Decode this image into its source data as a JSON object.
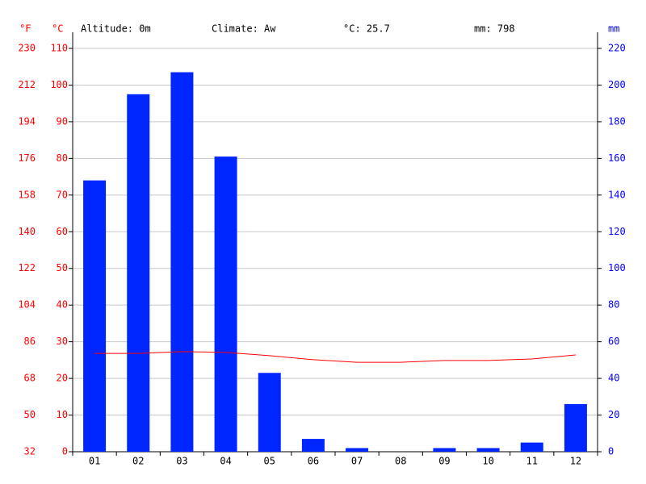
{
  "chart_data": {
    "type": "bar",
    "header": [
      "Altitude: 0m",
      "Climate: Aw",
      "°C: 25.7",
      "mm: 798"
    ],
    "yf_label": "°F",
    "y_label": "°C",
    "y2_label": "mm",
    "categories": [
      "01",
      "02",
      "03",
      "04",
      "05",
      "06",
      "07",
      "08",
      "09",
      "10",
      "11",
      "12"
    ],
    "series": [
      {
        "type": "bar",
        "axis": "y2",
        "color": "#0026ff",
        "values": [
          148,
          195,
          207,
          161,
          43,
          7,
          2,
          0,
          2,
          2,
          5,
          26
        ]
      },
      {
        "type": "line",
        "color": "#ff0000",
        "values": [
          26.8,
          26.8,
          27.3,
          27.1,
          26.2,
          25.1,
          24.4,
          24.4,
          24.9,
          24.9,
          25.3,
          26.4
        ]
      }
    ],
    "ylim": [
      0,
      110
    ],
    "yticks": [
      0,
      10,
      20,
      30,
      40,
      50,
      60,
      70,
      80,
      90,
      100,
      110
    ],
    "yflim": [
      32,
      230
    ],
    "yfticks": [
      32,
      50,
      68,
      86,
      104,
      122,
      140,
      158,
      176,
      194,
      212,
      230
    ],
    "y2lim": [
      0,
      220
    ],
    "y2ticks": [
      0,
      20,
      40,
      60,
      80,
      100,
      120,
      140,
      160,
      180,
      200,
      220
    ],
    "grid": true
  }
}
